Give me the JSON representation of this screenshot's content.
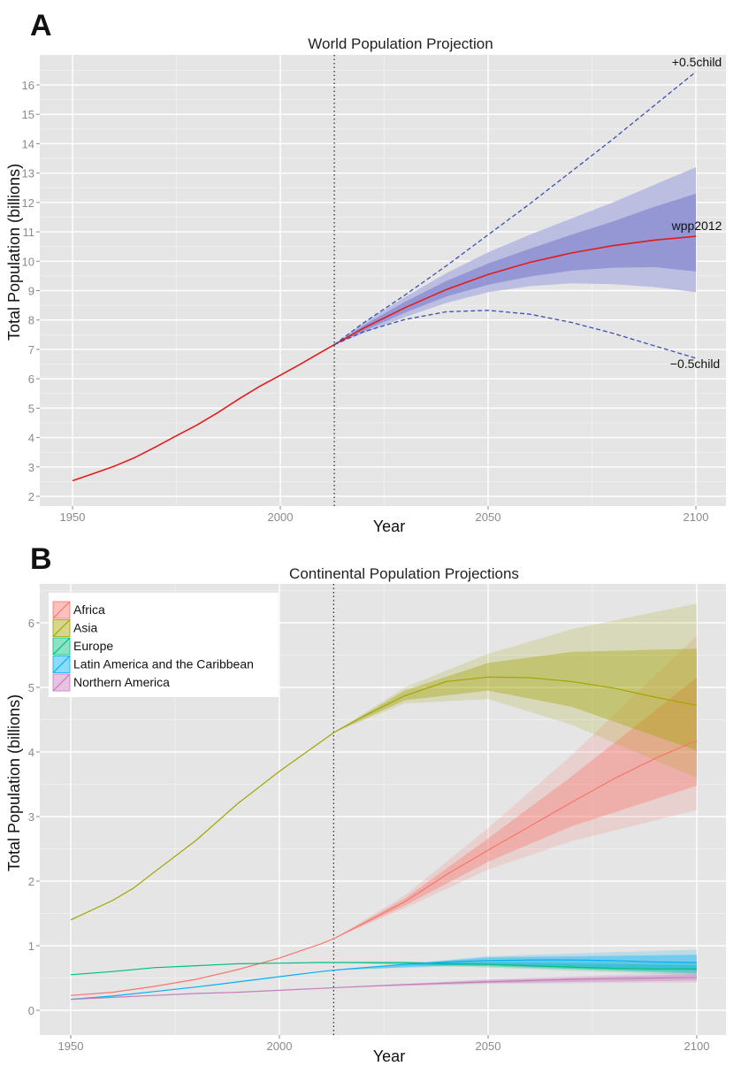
{
  "chart_data": [
    {
      "panel": "A",
      "type": "line",
      "title": "World Population Projection",
      "xlabel": "Year",
      "ylabel": "Total Population (billions)",
      "xlim": [
        1950,
        2100
      ],
      "ylim": [
        2,
        17
      ],
      "xticks": [
        "1950",
        "2000",
        "2050",
        "2100"
      ],
      "yticks": [
        "2",
        "3",
        "4",
        "5",
        "6",
        "7",
        "8",
        "9",
        "10",
        "11",
        "12",
        "13",
        "14",
        "15",
        "16"
      ],
      "reference_line_year": 2013,
      "grid": true,
      "series": [
        {
          "name": "wpp2012",
          "color": "#e41a1c",
          "style": "solid",
          "x": [
            1950,
            1955,
            1960,
            1965,
            1970,
            1975,
            1980,
            1985,
            1990,
            1995,
            2000,
            2005,
            2010,
            2013,
            2020,
            2030,
            2040,
            2050,
            2060,
            2070,
            2080,
            2090,
            2100
          ],
          "y": [
            2.53,
            2.77,
            3.02,
            3.32,
            3.68,
            4.06,
            4.43,
            4.85,
            5.31,
            5.74,
            6.12,
            6.51,
            6.92,
            7.16,
            7.72,
            8.42,
            9.04,
            9.55,
            9.96,
            10.28,
            10.53,
            10.72,
            10.85
          ]
        },
        {
          "name": "+0.5child",
          "color": "#3c4fb0",
          "style": "dashed",
          "x": [
            2013,
            2020,
            2030,
            2040,
            2050,
            2060,
            2070,
            2080,
            2090,
            2100
          ],
          "y": [
            7.16,
            7.9,
            8.85,
            9.85,
            10.9,
            11.95,
            13.05,
            14.15,
            15.3,
            16.45
          ]
        },
        {
          "name": "−0.5child",
          "color": "#3c4fb0",
          "style": "dashed",
          "x": [
            2013,
            2020,
            2030,
            2040,
            2050,
            2060,
            2070,
            2080,
            2090,
            2100
          ],
          "y": [
            7.16,
            7.6,
            8.02,
            8.28,
            8.33,
            8.2,
            7.92,
            7.55,
            7.12,
            6.7
          ]
        }
      ],
      "bands": [
        {
          "of": "wpp2012",
          "level": "95%",
          "color": "#b7b9e0",
          "x": [
            2013,
            2020,
            2030,
            2040,
            2050,
            2060,
            2070,
            2080,
            2090,
            2100
          ],
          "lower": [
            7.16,
            7.55,
            8.1,
            8.58,
            8.95,
            9.15,
            9.25,
            9.22,
            9.12,
            8.95
          ],
          "upper": [
            7.16,
            7.9,
            8.78,
            9.6,
            10.3,
            10.9,
            11.45,
            12.0,
            12.6,
            13.2
          ]
        },
        {
          "of": "wpp2012",
          "level": "80%",
          "color": "#8f92d3",
          "x": [
            2013,
            2020,
            2030,
            2040,
            2050,
            2060,
            2070,
            2080,
            2090,
            2100
          ],
          "lower": [
            7.16,
            7.62,
            8.25,
            8.8,
            9.2,
            9.48,
            9.68,
            9.78,
            9.8,
            9.65
          ],
          "upper": [
            7.16,
            7.82,
            8.62,
            9.33,
            9.92,
            10.42,
            10.9,
            11.35,
            11.85,
            12.3
          ]
        }
      ],
      "annotations": [
        {
          "text": "+0.5child",
          "x": 2100,
          "y": 16.45
        },
        {
          "text": "wpp2012",
          "x": 2100,
          "y": 10.85
        },
        {
          "text": "−0.5child",
          "x": 2100,
          "y": 6.7
        }
      ]
    },
    {
      "panel": "B",
      "type": "line",
      "title": "Continental Population Projections",
      "xlabel": "Year",
      "ylabel": "Total Population (billions)",
      "xlim": [
        1950,
        2100
      ],
      "ylim": [
        -0.25,
        6.55
      ],
      "xticks": [
        "1950",
        "2000",
        "2050",
        "2100"
      ],
      "yticks": [
        "0",
        "1",
        "2",
        "3",
        "4",
        "5",
        "6"
      ],
      "reference_line_year": 2013,
      "grid": true,
      "legend": "top-left",
      "series": [
        {
          "name": "Africa",
          "color": "#f8766d",
          "x": [
            1950,
            1960,
            1970,
            1980,
            1990,
            2000,
            2010,
            2013,
            2020,
            2030,
            2040,
            2050,
            2060,
            2070,
            2080,
            2090,
            2100
          ],
          "y": [
            0.23,
            0.28,
            0.37,
            0.48,
            0.63,
            0.81,
            1.03,
            1.11,
            1.34,
            1.68,
            2.1,
            2.48,
            2.85,
            3.22,
            3.58,
            3.9,
            4.18
          ],
          "band80": {
            "x": [
              2013,
              2030,
              2050,
              2070,
              2100
            ],
            "lower": [
              1.11,
              1.62,
              2.3,
              2.85,
              3.48
            ],
            "upper": [
              1.11,
              1.73,
              2.66,
              3.62,
              5.15
            ]
          },
          "band95": {
            "x": [
              2013,
              2030,
              2050,
              2070,
              2100
            ],
            "lower": [
              1.11,
              1.58,
              2.18,
              2.62,
              3.1
            ],
            "upper": [
              1.11,
              1.78,
              2.82,
              3.95,
              5.8
            ]
          }
        },
        {
          "name": "Asia",
          "color": "#a3a500",
          "x": [
            1950,
            1960,
            1965,
            1970,
            1980,
            1990,
            2000,
            2010,
            2013,
            2020,
            2030,
            2040,
            2050,
            2060,
            2070,
            2080,
            2090,
            2100
          ],
          "y": [
            1.4,
            1.7,
            1.89,
            2.14,
            2.63,
            3.2,
            3.7,
            4.16,
            4.3,
            4.55,
            4.87,
            5.09,
            5.16,
            5.15,
            5.09,
            4.99,
            4.85,
            4.72
          ],
          "band80": {
            "x": [
              2013,
              2030,
              2050,
              2070,
              2100
            ],
            "lower": [
              4.3,
              4.8,
              4.95,
              4.7,
              4.02
            ],
            "upper": [
              4.3,
              4.95,
              5.38,
              5.55,
              5.6
            ]
          },
          "band95": {
            "x": [
              2013,
              2030,
              2050,
              2070,
              2100
            ],
            "lower": [
              4.3,
              4.75,
              4.82,
              4.42,
              3.6
            ],
            "upper": [
              4.3,
              5.0,
              5.52,
              5.9,
              6.3
            ]
          }
        },
        {
          "name": "Europe",
          "color": "#00bf7d",
          "x": [
            1950,
            1960,
            1970,
            1980,
            1990,
            2000,
            2010,
            2013,
            2020,
            2030,
            2040,
            2050,
            2060,
            2070,
            2080,
            2090,
            2100
          ],
          "y": [
            0.55,
            0.6,
            0.66,
            0.69,
            0.72,
            0.73,
            0.74,
            0.74,
            0.74,
            0.74,
            0.72,
            0.71,
            0.69,
            0.67,
            0.65,
            0.64,
            0.64
          ],
          "band80": {
            "x": [
              2013,
              2050,
              2100
            ],
            "lower": [
              0.74,
              0.68,
              0.58
            ],
            "upper": [
              0.74,
              0.74,
              0.7
            ]
          },
          "band95": {
            "x": [
              2013,
              2050,
              2100
            ],
            "lower": [
              0.74,
              0.66,
              0.54
            ],
            "upper": [
              0.74,
              0.76,
              0.75
            ]
          }
        },
        {
          "name": "Latin America and the Caribbean",
          "color": "#00b0f6",
          "x": [
            1950,
            1960,
            1970,
            1980,
            1990,
            2000,
            2010,
            2013,
            2020,
            2030,
            2040,
            2050,
            2060,
            2070,
            2080,
            2090,
            2100
          ],
          "y": [
            0.17,
            0.22,
            0.29,
            0.36,
            0.44,
            0.52,
            0.6,
            0.62,
            0.66,
            0.71,
            0.75,
            0.77,
            0.78,
            0.78,
            0.77,
            0.75,
            0.74
          ],
          "band80": {
            "x": [
              2013,
              2050,
              2100
            ],
            "lower": [
              0.62,
              0.72,
              0.62
            ],
            "upper": [
              0.62,
              0.82,
              0.86
            ]
          },
          "band95": {
            "x": [
              2013,
              2050,
              2100
            ],
            "lower": [
              0.62,
              0.7,
              0.56
            ],
            "upper": [
              0.62,
              0.84,
              0.94
            ]
          }
        },
        {
          "name": "Northern America",
          "color": "#c77cbd",
          "x": [
            1950,
            1960,
            1970,
            1980,
            1990,
            2000,
            2010,
            2013,
            2020,
            2030,
            2040,
            2050,
            2060,
            2070,
            2080,
            2090,
            2100
          ],
          "y": [
            0.17,
            0.2,
            0.23,
            0.26,
            0.28,
            0.31,
            0.34,
            0.35,
            0.37,
            0.4,
            0.42,
            0.44,
            0.46,
            0.48,
            0.49,
            0.5,
            0.51
          ],
          "band80": {
            "x": [
              2013,
              2050,
              2100
            ],
            "lower": [
              0.35,
              0.42,
              0.46
            ],
            "upper": [
              0.35,
              0.47,
              0.56
            ]
          },
          "band95": {
            "x": [
              2013,
              2050,
              2100
            ],
            "lower": [
              0.35,
              0.41,
              0.43
            ],
            "upper": [
              0.35,
              0.48,
              0.6
            ]
          }
        }
      ]
    }
  ]
}
